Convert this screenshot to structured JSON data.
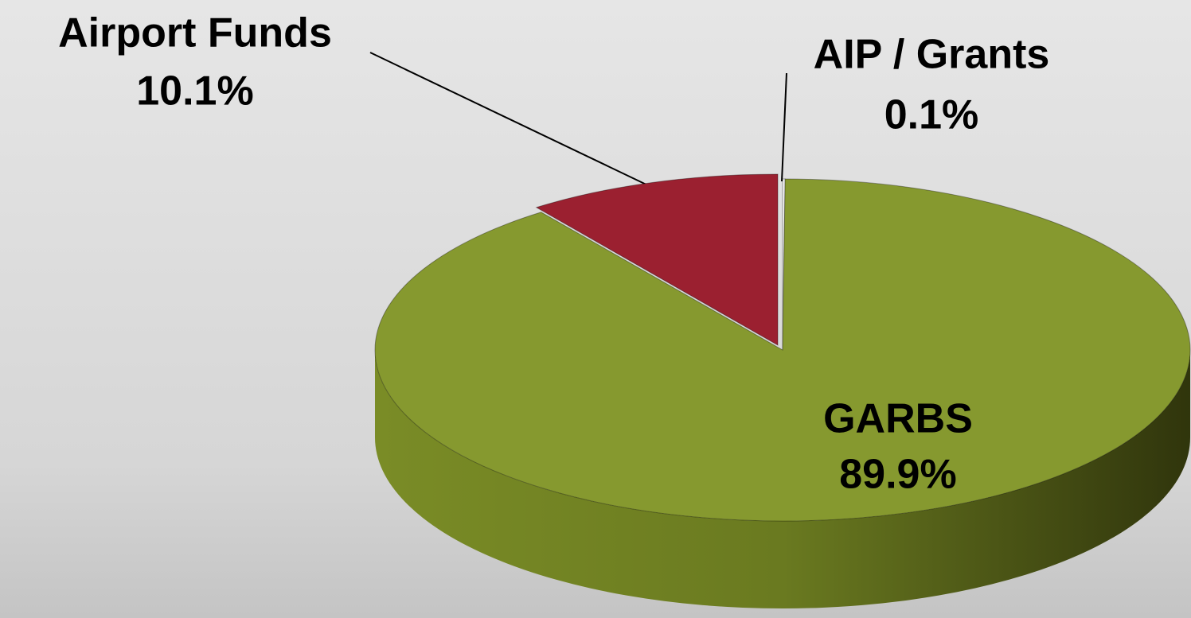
{
  "chart_data": {
    "type": "pie",
    "categories": [
      "AIP / Grants",
      "GARBS",
      "Airport Funds"
    ],
    "values": [
      0.1,
      89.9,
      10.1
    ],
    "value_labels": [
      "0.1%",
      "89.9%",
      "10.1%"
    ],
    "colors": [
      "#f2f2f2",
      "#86992f",
      "#9b2030"
    ]
  }
}
